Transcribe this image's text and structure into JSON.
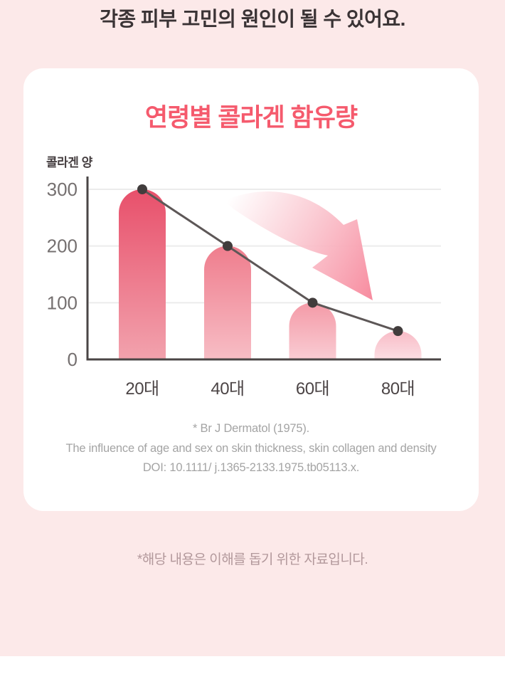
{
  "page": {
    "heading": "각종 피부 고민의 원인이 될 수 있어요.",
    "footnote": "*해당 내용은 이해를 돕기 위한 자료입니다."
  },
  "card": {
    "citation": {
      "line1": "* Br J Dermatol (1975).",
      "line2": "The influence of age and sex on skin thickness, skin collagen and density",
      "line3": "DOI: 10.1111/ j.1365-2133.1975.tb05113.x."
    }
  },
  "chart_data": {
    "type": "bar",
    "title": "연령별 콜라겐 함유량",
    "ylabel": "콜라겐 양",
    "xlabel": "",
    "categories": [
      "20대",
      "40대",
      "60대",
      "80대"
    ],
    "values": [
      300,
      200,
      100,
      50
    ],
    "yticks": [
      0,
      100,
      200,
      300
    ],
    "ylim": [
      0,
      320
    ],
    "grid": true,
    "line_overlay": {
      "series": "collagen-decline",
      "values": [
        300,
        200,
        100,
        50
      ]
    },
    "annotations": [
      "decline-arrow"
    ],
    "colors": {
      "bar_gradient_tops": [
        "#e8506b",
        "#ef7d8d",
        "#f49aa7",
        "#f8bcc7"
      ],
      "bar_gradient_bottoms": [
        "#f2a2ad",
        "#f7bdc5",
        "#f9ccd3",
        "#fcdee3"
      ],
      "line": "#5d5757",
      "dot": "#413c3c",
      "arrow_start": "#fbd3da",
      "arrow_end": "#f78da0",
      "axis": "#4a4545",
      "grid": "#ececec"
    }
  },
  "colors": {
    "background": "#fce9e9",
    "card": "#ffffff",
    "title": "#f55a6d",
    "heading_text": "#3a3335",
    "footnote_text": "#b2989b",
    "citation_text": "#a4a4a4",
    "tick_text": "#757070",
    "xlabel_text": "#4c4546"
  }
}
